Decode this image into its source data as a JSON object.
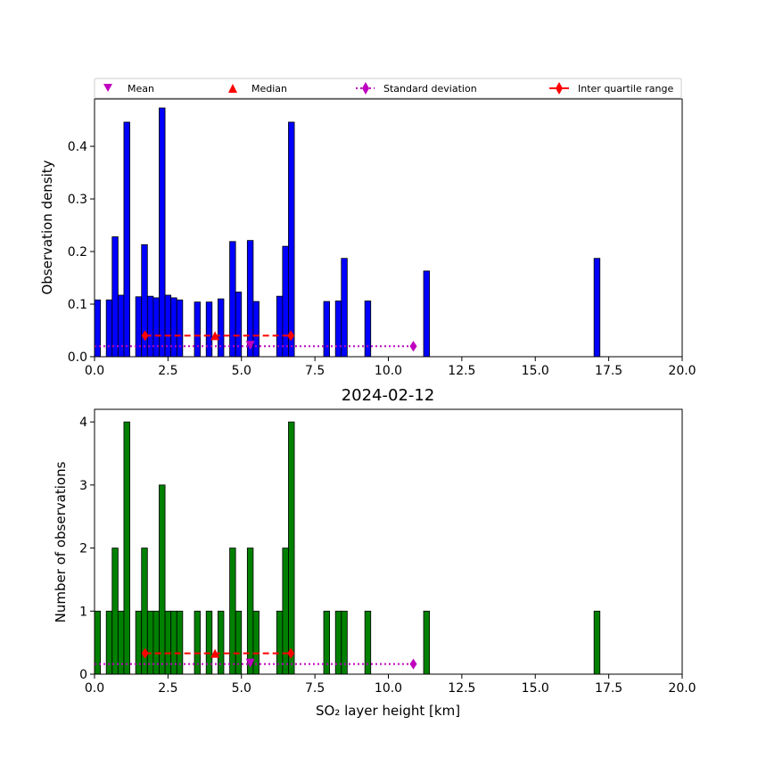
{
  "title": "2024-02-12",
  "legend": [
    {
      "label": "Mean",
      "marker": "triangle-down",
      "color": "#bf00bf"
    },
    {
      "label": "Median",
      "marker": "triangle-up",
      "color": "#ff0000"
    },
    {
      "label": "Standard deviation",
      "marker": "diamond-dotted-line",
      "color": "#bf00bf"
    },
    {
      "label": "Inter quartile range",
      "marker": "diamond-dashed-line",
      "color": "#ff0000"
    }
  ],
  "chart_data": [
    {
      "type": "bar",
      "name": "top-density-histogram",
      "title": "",
      "xlabel": "",
      "ylabel": "Observation density",
      "xlim": [
        0,
        20
      ],
      "ylim": [
        0,
        0.49
      ],
      "xticks": [
        0.0,
        2.5,
        5.0,
        7.5,
        10.0,
        12.5,
        15.0,
        17.5,
        20.0
      ],
      "xtick_labels": [
        "0.0",
        "2.5",
        "5.0",
        "7.5",
        "10.0",
        "12.5",
        "15.0",
        "17.5",
        "20.0"
      ],
      "yticks": [
        0.0,
        0.1,
        0.2,
        0.3,
        0.4
      ],
      "ytick_labels": [
        "0.0",
        "0.1",
        "0.2",
        "0.3",
        "0.4"
      ],
      "bar_color": "#0000ff",
      "bars": [
        {
          "x0": 0.0,
          "x1": 0.2,
          "value": 0.108
        },
        {
          "x0": 0.4,
          "x1": 0.6,
          "value": 0.108
        },
        {
          "x0": 0.6,
          "x1": 0.8,
          "value": 0.228
        },
        {
          "x0": 0.8,
          "x1": 1.0,
          "value": 0.117
        },
        {
          "x0": 1.0,
          "x1": 1.2,
          "value": 0.446
        },
        {
          "x0": 1.4,
          "x1": 1.6,
          "value": 0.114
        },
        {
          "x0": 1.6,
          "x1": 1.8,
          "value": 0.213
        },
        {
          "x0": 1.8,
          "x1": 2.0,
          "value": 0.115
        },
        {
          "x0": 2.0,
          "x1": 2.2,
          "value": 0.112
        },
        {
          "x0": 2.2,
          "x1": 2.4,
          "value": 0.473
        },
        {
          "x0": 2.4,
          "x1": 2.6,
          "value": 0.117
        },
        {
          "x0": 2.6,
          "x1": 2.8,
          "value": 0.112
        },
        {
          "x0": 2.8,
          "x1": 3.0,
          "value": 0.108
        },
        {
          "x0": 3.4,
          "x1": 3.6,
          "value": 0.104
        },
        {
          "x0": 3.8,
          "x1": 4.0,
          "value": 0.104
        },
        {
          "x0": 4.2,
          "x1": 4.4,
          "value": 0.11
        },
        {
          "x0": 4.6,
          "x1": 4.8,
          "value": 0.219
        },
        {
          "x0": 4.8,
          "x1": 5.0,
          "value": 0.123
        },
        {
          "x0": 5.2,
          "x1": 5.4,
          "value": 0.221
        },
        {
          "x0": 5.4,
          "x1": 5.6,
          "value": 0.105
        },
        {
          "x0": 6.2,
          "x1": 6.4,
          "value": 0.115
        },
        {
          "x0": 6.4,
          "x1": 6.6,
          "value": 0.21
        },
        {
          "x0": 6.6,
          "x1": 6.8,
          "value": 0.446
        },
        {
          "x0": 7.8,
          "x1": 8.0,
          "value": 0.105
        },
        {
          "x0": 8.2,
          "x1": 8.4,
          "value": 0.106
        },
        {
          "x0": 8.4,
          "x1": 8.6,
          "value": 0.187
        },
        {
          "x0": 9.2,
          "x1": 9.4,
          "value": 0.106
        },
        {
          "x0": 11.2,
          "x1": 11.4,
          "value": 0.163
        },
        {
          "x0": 17.0,
          "x1": 17.2,
          "value": 0.187
        }
      ],
      "stats": {
        "marker_y": 0.04,
        "std_y": 0.02,
        "mean": 5.3,
        "median": 4.1,
        "iqr": [
          1.72,
          6.68
        ],
        "std_range": [
          0.0,
          10.85
        ]
      }
    },
    {
      "type": "bar",
      "name": "bottom-count-histogram",
      "title": "2024-02-12",
      "xlabel": "SO₂ layer height [km]",
      "ylabel": "Number of observations",
      "xlim": [
        0,
        20
      ],
      "ylim": [
        0,
        4.2
      ],
      "xticks": [
        0.0,
        2.5,
        5.0,
        7.5,
        10.0,
        12.5,
        15.0,
        17.5,
        20.0
      ],
      "xtick_labels": [
        "0.0",
        "2.5",
        "5.0",
        "7.5",
        "10.0",
        "12.5",
        "15.0",
        "17.5",
        "20.0"
      ],
      "yticks": [
        0,
        1,
        2,
        3,
        4
      ],
      "ytick_labels": [
        "0",
        "1",
        "2",
        "3",
        "4"
      ],
      "bar_color": "#008000",
      "bars": [
        {
          "x0": 0.0,
          "x1": 0.2,
          "value": 1
        },
        {
          "x0": 0.4,
          "x1": 0.6,
          "value": 1
        },
        {
          "x0": 0.6,
          "x1": 0.8,
          "value": 2
        },
        {
          "x0": 0.8,
          "x1": 1.0,
          "value": 1
        },
        {
          "x0": 1.0,
          "x1": 1.2,
          "value": 4
        },
        {
          "x0": 1.4,
          "x1": 1.6,
          "value": 1
        },
        {
          "x0": 1.6,
          "x1": 1.8,
          "value": 2
        },
        {
          "x0": 1.8,
          "x1": 2.0,
          "value": 1
        },
        {
          "x0": 2.0,
          "x1": 2.2,
          "value": 1
        },
        {
          "x0": 2.2,
          "x1": 2.4,
          "value": 3
        },
        {
          "x0": 2.4,
          "x1": 2.6,
          "value": 1
        },
        {
          "x0": 2.6,
          "x1": 2.8,
          "value": 1
        },
        {
          "x0": 2.8,
          "x1": 3.0,
          "value": 1
        },
        {
          "x0": 3.4,
          "x1": 3.6,
          "value": 1
        },
        {
          "x0": 3.8,
          "x1": 4.0,
          "value": 1
        },
        {
          "x0": 4.2,
          "x1": 4.4,
          "value": 1
        },
        {
          "x0": 4.6,
          "x1": 4.8,
          "value": 2
        },
        {
          "x0": 4.8,
          "x1": 5.0,
          "value": 1
        },
        {
          "x0": 5.2,
          "x1": 5.4,
          "value": 2
        },
        {
          "x0": 5.4,
          "x1": 5.6,
          "value": 1
        },
        {
          "x0": 6.2,
          "x1": 6.4,
          "value": 1
        },
        {
          "x0": 6.4,
          "x1": 6.6,
          "value": 2
        },
        {
          "x0": 6.6,
          "x1": 6.8,
          "value": 4
        },
        {
          "x0": 7.8,
          "x1": 8.0,
          "value": 1
        },
        {
          "x0": 8.2,
          "x1": 8.4,
          "value": 1
        },
        {
          "x0": 8.4,
          "x1": 8.6,
          "value": 1
        },
        {
          "x0": 9.2,
          "x1": 9.4,
          "value": 1
        },
        {
          "x0": 11.2,
          "x1": 11.4,
          "value": 1
        },
        {
          "x0": 17.0,
          "x1": 17.2,
          "value": 1
        }
      ],
      "stats": {
        "marker_y": 0.33,
        "std_y": 0.16,
        "mean": 5.3,
        "median": 4.1,
        "iqr": [
          1.72,
          6.68
        ],
        "std_range": [
          0.0,
          10.85
        ]
      }
    }
  ]
}
